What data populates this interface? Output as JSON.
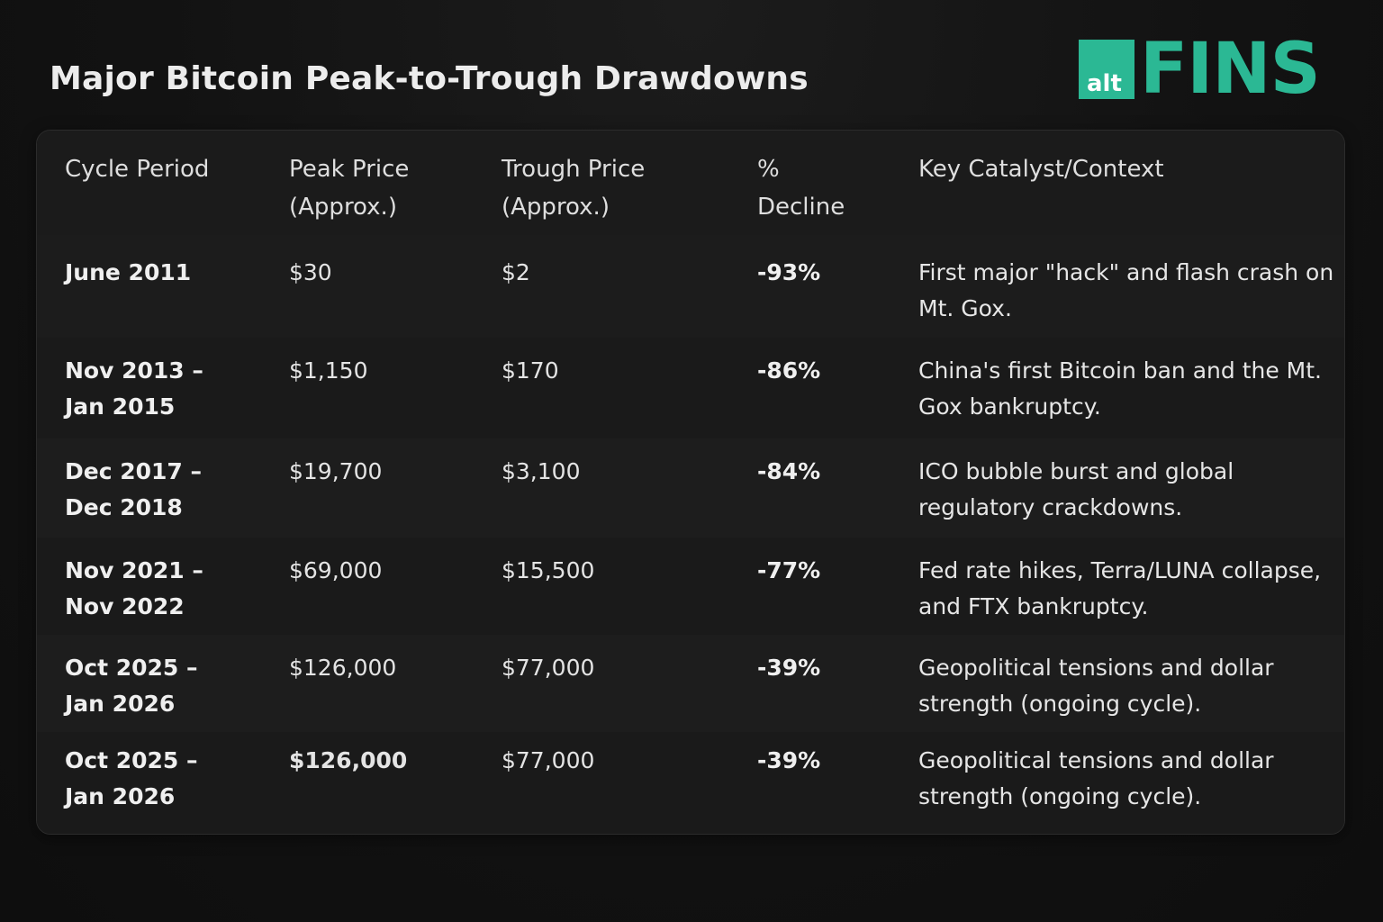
{
  "title": "Major Bitcoin Peak-to-Trough Drawdowns",
  "logo": {
    "alt_text": "alt",
    "fins_text": "FINS",
    "brand_color": "#2bb894"
  },
  "chart_data": {
    "type": "table",
    "columns": [
      "Cycle Period",
      "Peak Price\n(Approx.)",
      "Trough Price\n(Approx.)",
      "%\nDecline",
      "Key Catalyst/Context"
    ],
    "rows": [
      {
        "period": "June 2011",
        "peak": "$30",
        "trough": "$2",
        "decline": "-93%",
        "context": "First major \"hack\" and flash crash on Mt. Gox."
      },
      {
        "period": "Nov 2013 –\nJan 2015",
        "peak": "$1,150",
        "trough": "$170",
        "decline": "-86%",
        "context": "China's first Bitcoin ban and the Mt. Gox bankruptcy."
      },
      {
        "period": "Dec 2017 –\nDec 2018",
        "peak": "$19,700",
        "trough": "$3,100",
        "decline": "-84%",
        "context": "ICO bubble burst and global regulatory crackdowns."
      },
      {
        "period": "Nov 2021 –\nNov 2022",
        "peak": "$69,000",
        "trough": "$15,500",
        "decline": "-77%",
        "context": "Fed rate hikes, Terra/LUNA collapse, and FTX bankruptcy."
      },
      {
        "period": "Oct 2025 –\nJan 2026",
        "peak": "$126,000",
        "trough": "$77,000",
        "decline": "-39%",
        "context": "Geopolitical tensions and dollar strength (ongoing cycle)."
      },
      {
        "period": "Oct 2025 –\nJan 2026",
        "peak": "$126,000",
        "trough": "$77,000",
        "decline": "-39%",
        "context": "Geopolitical tensions and dollar strength (ongoing cycle)."
      }
    ]
  }
}
